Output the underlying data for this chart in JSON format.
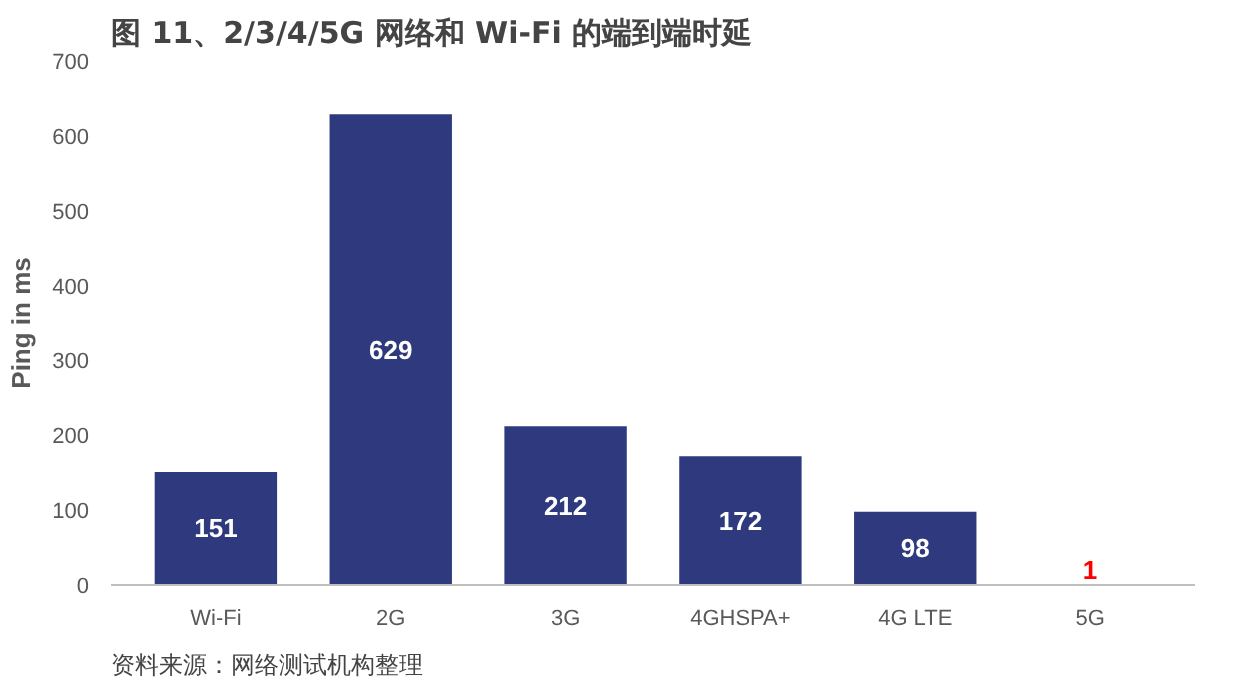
{
  "chart_data": {
    "type": "bar",
    "title": "图 11、2/3/4/5G 网络和 Wi-Fi 的端到端时延",
    "ylabel": "Ping in ms",
    "categories": [
      "Wi-Fi",
      "2G",
      "3G",
      "4GHSPA+",
      "4G LTE",
      "5G"
    ],
    "values": [
      151,
      629,
      212,
      172,
      98,
      1
    ],
    "color": "#2e3a7d",
    "ylim": [
      0,
      700
    ],
    "yticks": [
      0,
      100,
      200,
      300,
      400,
      500,
      600,
      700
    ],
    "grid": false,
    "data_labels": true,
    "annotations": [
      "资料来源：网络测试机构整理"
    ]
  }
}
